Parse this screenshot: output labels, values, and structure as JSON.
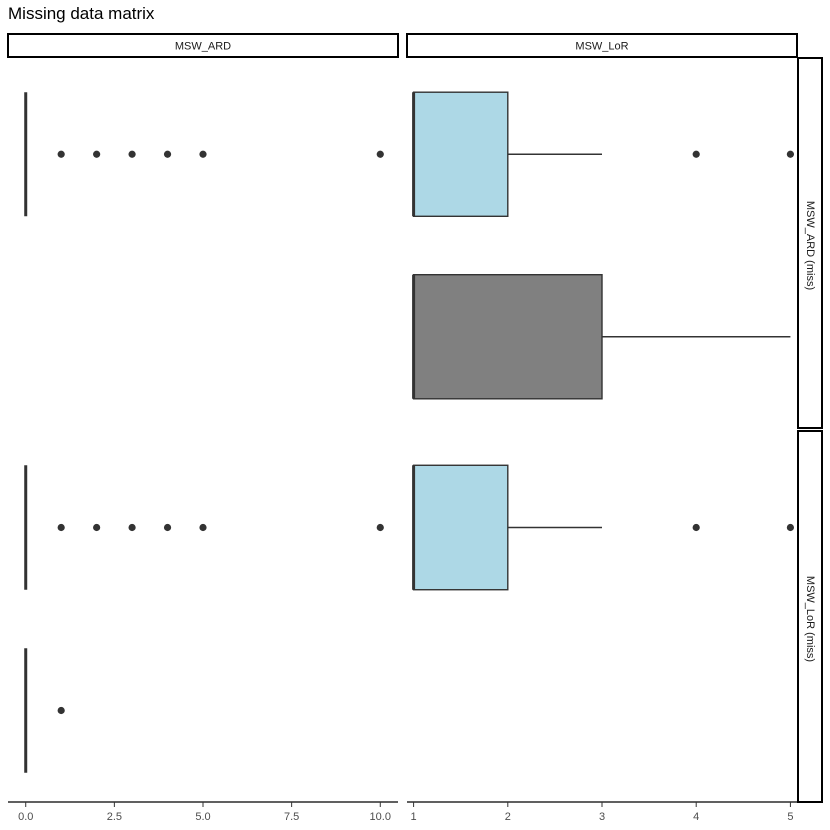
{
  "title": "Missing data matrix",
  "chart_data": {
    "type": "boxplot",
    "title": "Missing data matrix",
    "columns": [
      "MSW_ARD",
      "MSW_LoR"
    ],
    "rows": [
      "MSW_ARD (miss)",
      "MSW_LoR (miss)"
    ],
    "column_xlim": [
      [
        -0.5,
        10.5
      ],
      [
        0.93,
        5.07
      ]
    ],
    "column_ticks": [
      {
        "values": [
          0,
          2.5,
          5,
          7.5,
          10
        ],
        "labels": [
          "0.0",
          "2.5",
          "5.0",
          "7.5",
          "10.0"
        ]
      },
      {
        "values": [
          1,
          2,
          3,
          4,
          5
        ],
        "labels": [
          "1",
          "2",
          "3",
          "4",
          "5"
        ]
      }
    ],
    "colors": {
      "observed": "#add8e6",
      "missing": "#808080",
      "line": "#333333"
    },
    "boxes": [
      {
        "row": 0,
        "col": 0,
        "group": "observed",
        "q1": 0,
        "median": 0,
        "q3": 0,
        "whisker_low": 0,
        "whisker_high": 0,
        "outliers": [
          1,
          2,
          3,
          4,
          5,
          10
        ]
      },
      {
        "row": 0,
        "col": 1,
        "group": "observed",
        "q1": 1,
        "median": 1,
        "q3": 2,
        "whisker_low": 1,
        "whisker_high": 3,
        "outliers": [
          4,
          5
        ]
      },
      {
        "row": 0,
        "col": 1,
        "group": "missing",
        "q1": 1,
        "median": 1,
        "q3": 3,
        "whisker_low": 1,
        "whisker_high": 5,
        "outliers": []
      },
      {
        "row": 1,
        "col": 0,
        "group": "observed",
        "q1": 0,
        "median": 0,
        "q3": 0,
        "whisker_low": 0,
        "whisker_high": 0,
        "outliers": [
          1,
          2,
          3,
          4,
          5,
          10
        ]
      },
      {
        "row": 1,
        "col": 0,
        "group": "missing",
        "q1": 0,
        "median": 0,
        "q3": 0,
        "whisker_low": 0,
        "whisker_high": 0,
        "outliers": [
          1
        ]
      },
      {
        "row": 1,
        "col": 1,
        "group": "observed",
        "q1": 1,
        "median": 1,
        "q3": 2,
        "whisker_low": 1,
        "whisker_high": 3,
        "outliers": [
          4,
          5
        ]
      }
    ]
  }
}
